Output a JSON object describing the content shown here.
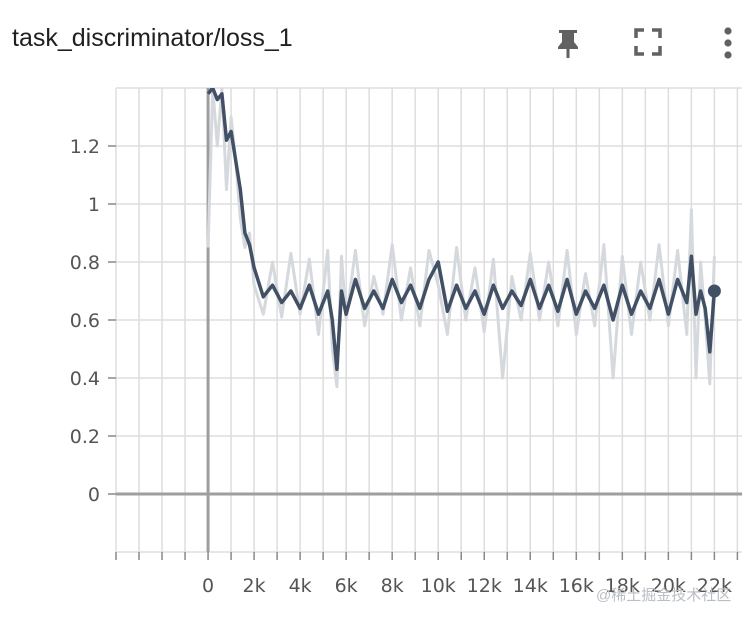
{
  "card": {
    "title": "task_discriminator/loss_1",
    "toolbar": [
      {
        "name": "pin-button",
        "icon": "pin-icon"
      },
      {
        "name": "fullscreen-button",
        "icon": "fullscreen-icon"
      },
      {
        "name": "more-options-button",
        "icon": "more-vert-icon"
      }
    ]
  },
  "watermark": "@稀土掘金技术社区",
  "chart_data": {
    "type": "line",
    "title": "task_discriminator/loss_1",
    "xlabel": "",
    "ylabel": "",
    "xlim": [
      -4000,
      23200
    ],
    "ylim": [
      -0.2,
      1.4
    ],
    "x_ticks": [
      0,
      2000,
      4000,
      6000,
      8000,
      10000,
      12000,
      14000,
      16000,
      18000,
      20000,
      22000
    ],
    "x_tick_labels": [
      "0",
      "2k",
      "4k",
      "6k",
      "8k",
      "10k",
      "12k",
      "14k",
      "16k",
      "18k",
      "20k",
      "22k"
    ],
    "y_ticks": [
      0,
      0.2,
      0.4,
      0.6,
      0.8,
      1,
      1.2
    ],
    "y_tick_labels": [
      "0",
      "0.2",
      "0.4",
      "0.6",
      "0.8",
      "1",
      "1.2"
    ],
    "grid": true,
    "colors": {
      "smoothed": "#425066",
      "raw": "#d5d9de",
      "axis": "#9e9e9e",
      "grid": "#dddddd"
    },
    "series": [
      {
        "role": "raw",
        "x": [
          0,
          200,
          400,
          600,
          800,
          1000,
          1200,
          1400,
          1600,
          1800,
          2000,
          2400,
          2800,
          3200,
          3600,
          4000,
          4400,
          4800,
          5200,
          5400,
          5600,
          5800,
          6000,
          6400,
          6800,
          7200,
          7600,
          8000,
          8400,
          8800,
          9200,
          9600,
          10000,
          10400,
          10800,
          11200,
          11600,
          12000,
          12400,
          12800,
          13200,
          13600,
          14000,
          14400,
          14800,
          15200,
          15600,
          16000,
          16400,
          16800,
          17200,
          17600,
          18000,
          18400,
          18800,
          19200,
          19600,
          20000,
          20400,
          20800,
          21000,
          21200,
          21400,
          21600,
          21800,
          22000
        ],
        "y": [
          0.85,
          1.4,
          1.2,
          1.4,
          1.05,
          1.3,
          1.15,
          0.95,
          0.85,
          0.9,
          0.72,
          0.62,
          0.8,
          0.61,
          0.83,
          0.62,
          0.81,
          0.55,
          0.84,
          0.5,
          0.37,
          0.82,
          0.6,
          0.84,
          0.58,
          0.75,
          0.62,
          0.86,
          0.6,
          0.78,
          0.58,
          0.84,
          0.72,
          0.55,
          0.85,
          0.6,
          0.78,
          0.56,
          0.81,
          0.4,
          0.75,
          0.6,
          0.83,
          0.6,
          0.8,
          0.58,
          0.84,
          0.55,
          0.76,
          0.58,
          0.86,
          0.4,
          0.82,
          0.55,
          0.8,
          0.6,
          0.86,
          0.58,
          0.84,
          0.55,
          0.98,
          0.4,
          0.8,
          0.6,
          0.38,
          0.82
        ]
      },
      {
        "role": "smoothed",
        "x": [
          0,
          200,
          400,
          600,
          800,
          1000,
          1200,
          1400,
          1600,
          1800,
          2000,
          2400,
          2800,
          3200,
          3600,
          4000,
          4400,
          4800,
          5200,
          5400,
          5600,
          5800,
          6000,
          6400,
          6800,
          7200,
          7600,
          8000,
          8400,
          8800,
          9200,
          9600,
          10000,
          10400,
          10800,
          11200,
          11600,
          12000,
          12400,
          12800,
          13200,
          13600,
          14000,
          14400,
          14800,
          15200,
          15600,
          16000,
          16400,
          16800,
          17200,
          17600,
          18000,
          18400,
          18800,
          19200,
          19600,
          20000,
          20400,
          20800,
          21000,
          21200,
          21400,
          21600,
          21800,
          22000
        ],
        "y": [
          1.38,
          1.4,
          1.36,
          1.38,
          1.22,
          1.25,
          1.15,
          1.05,
          0.9,
          0.86,
          0.78,
          0.68,
          0.72,
          0.66,
          0.7,
          0.64,
          0.72,
          0.62,
          0.7,
          0.6,
          0.43,
          0.7,
          0.62,
          0.74,
          0.64,
          0.7,
          0.64,
          0.74,
          0.66,
          0.72,
          0.64,
          0.74,
          0.8,
          0.63,
          0.72,
          0.64,
          0.7,
          0.62,
          0.72,
          0.64,
          0.7,
          0.65,
          0.74,
          0.64,
          0.72,
          0.63,
          0.74,
          0.62,
          0.7,
          0.64,
          0.72,
          0.6,
          0.72,
          0.62,
          0.7,
          0.64,
          0.74,
          0.62,
          0.74,
          0.66,
          0.82,
          0.62,
          0.7,
          0.64,
          0.49,
          0.7
        ]
      }
    ]
  }
}
